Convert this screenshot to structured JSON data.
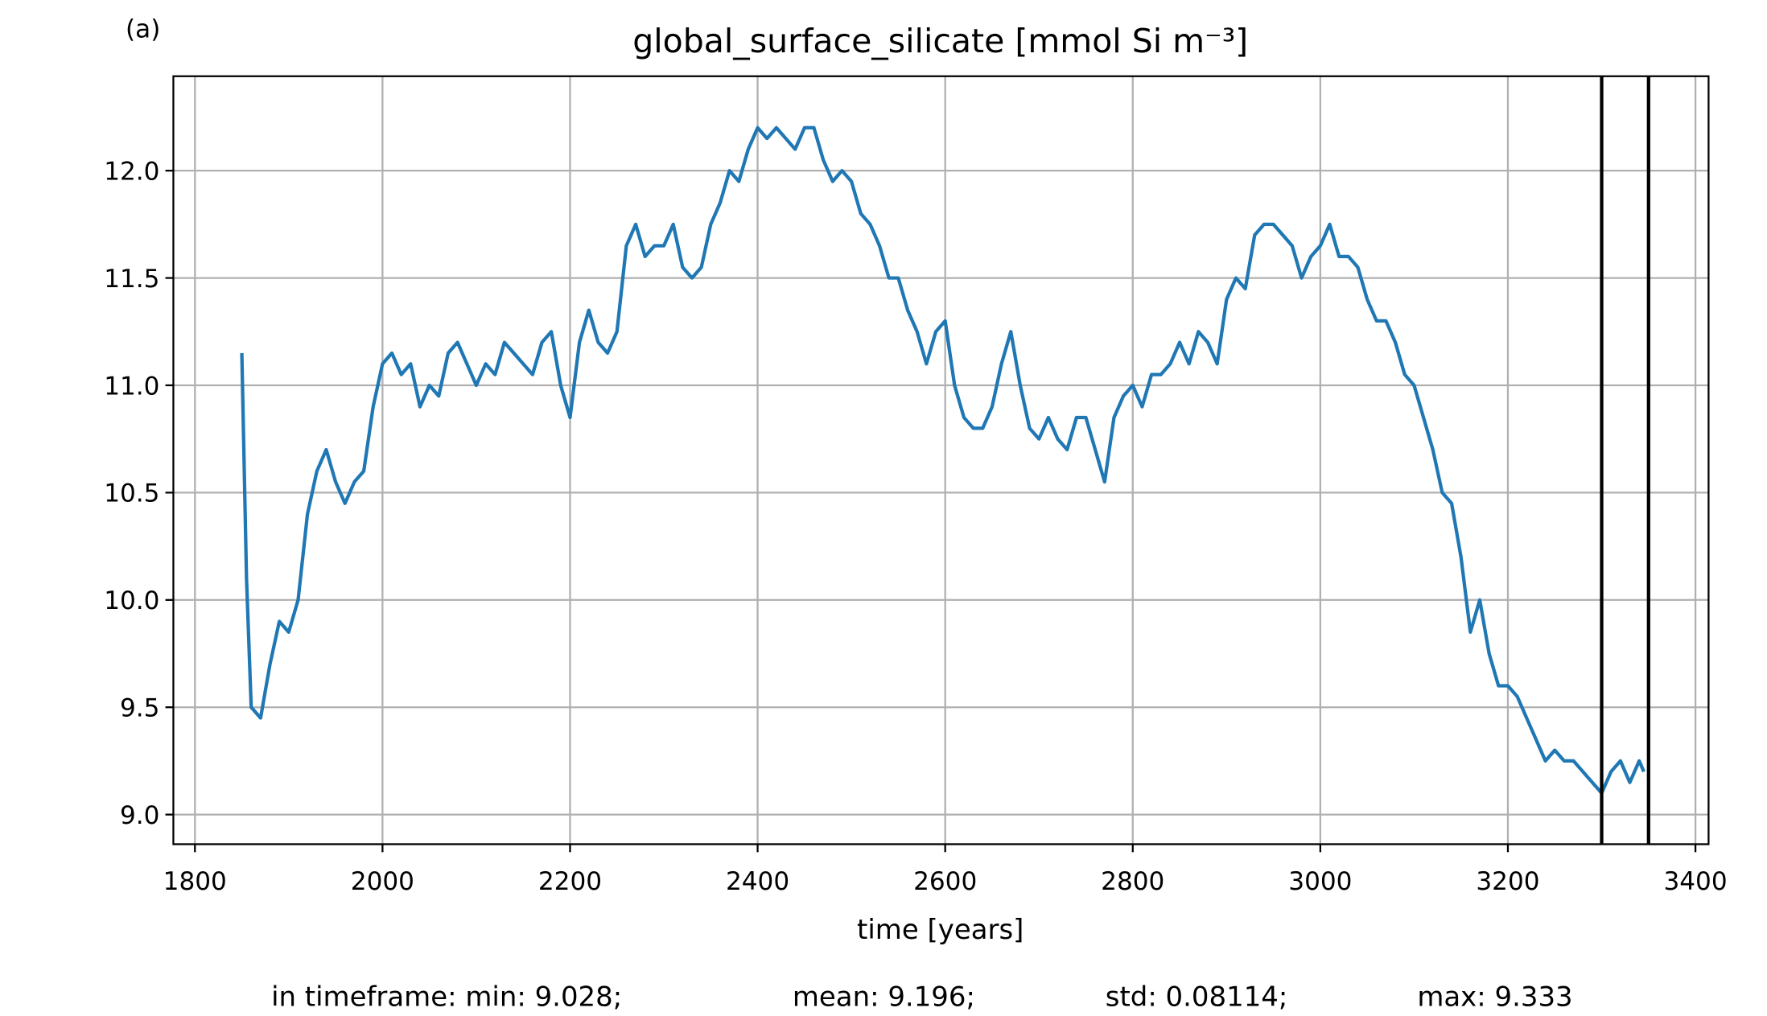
{
  "chart_data": {
    "type": "line",
    "panel_label": "(a)",
    "title": "global_surface_silicate [mmol Si m⁻³]",
    "x_label": "time [years]",
    "annotations": [
      "in timeframe: min: 9.028;",
      "mean: 9.196;",
      "std: 0.08114;",
      "max: 9.333"
    ],
    "x": [
      1850,
      1855,
      1860,
      1870,
      1880,
      1890,
      1900,
      1910,
      1920,
      1930,
      1940,
      1950,
      1960,
      1970,
      1980,
      1990,
      2000,
      2010,
      2020,
      2030,
      2040,
      2050,
      2060,
      2070,
      2080,
      2090,
      2100,
      2110,
      2120,
      2130,
      2140,
      2150,
      2160,
      2170,
      2180,
      2190,
      2200,
      2210,
      2220,
      2230,
      2240,
      2250,
      2260,
      2270,
      2280,
      2290,
      2300,
      2310,
      2320,
      2330,
      2340,
      2350,
      2360,
      2370,
      2380,
      2390,
      2400,
      2410,
      2420,
      2430,
      2440,
      2450,
      2460,
      2470,
      2480,
      2490,
      2500,
      2510,
      2520,
      2530,
      2540,
      2550,
      2560,
      2570,
      2580,
      2590,
      2600,
      2610,
      2620,
      2630,
      2640,
      2650,
      2660,
      2670,
      2680,
      2690,
      2700,
      2710,
      2720,
      2730,
      2740,
      2750,
      2760,
      2770,
      2780,
      2790,
      2800,
      2810,
      2820,
      2830,
      2840,
      2850,
      2860,
      2870,
      2880,
      2890,
      2900,
      2910,
      2920,
      2930,
      2940,
      2950,
      2960,
      2970,
      2980,
      2990,
      3000,
      3010,
      3020,
      3030,
      3040,
      3050,
      3060,
      3070,
      3080,
      3090,
      3100,
      3110,
      3120,
      3130,
      3140,
      3150,
      3160,
      3170,
      3180,
      3190,
      3200,
      3210,
      3220,
      3230,
      3240,
      3250,
      3260,
      3270,
      3280,
      3290,
      3300,
      3310,
      3320,
      3330,
      3340,
      3345
    ],
    "series": [
      {
        "name": "global_surface_silicate",
        "color": "#1f77b4",
        "values": [
          11.15,
          10.1,
          9.5,
          9.45,
          9.7,
          9.9,
          9.85,
          10.0,
          10.4,
          10.6,
          10.7,
          10.55,
          10.45,
          10.55,
          10.6,
          10.9,
          11.1,
          11.15,
          11.05,
          11.1,
          10.9,
          11.0,
          10.95,
          11.15,
          11.2,
          11.1,
          11.0,
          11.1,
          11.05,
          11.2,
          11.15,
          11.1,
          11.05,
          11.2,
          11.25,
          11.0,
          10.85,
          11.2,
          11.35,
          11.2,
          11.15,
          11.25,
          11.65,
          11.75,
          11.6,
          11.65,
          11.65,
          11.75,
          11.55,
          11.5,
          11.55,
          11.75,
          11.85,
          12.0,
          11.95,
          12.1,
          12.2,
          12.15,
          12.2,
          12.15,
          12.1,
          12.2,
          12.2,
          12.05,
          11.95,
          12.0,
          11.95,
          11.8,
          11.75,
          11.65,
          11.5,
          11.5,
          11.35,
          11.25,
          11.1,
          11.25,
          11.3,
          11.0,
          10.85,
          10.8,
          10.8,
          10.9,
          11.1,
          11.25,
          11.0,
          10.8,
          10.75,
          10.85,
          10.75,
          10.7,
          10.85,
          10.85,
          10.7,
          10.55,
          10.85,
          10.95,
          11.0,
          10.9,
          11.05,
          11.05,
          11.1,
          11.2,
          11.1,
          11.25,
          11.2,
          11.1,
          11.4,
          11.5,
          11.45,
          11.7,
          11.75,
          11.75,
          11.7,
          11.65,
          11.5,
          11.6,
          11.65,
          11.75,
          11.6,
          11.6,
          11.55,
          11.4,
          11.3,
          11.3,
          11.2,
          11.05,
          11.0,
          10.85,
          10.7,
          10.5,
          10.45,
          10.2,
          9.85,
          10.0,
          9.75,
          9.6,
          9.6,
          9.55,
          9.45,
          9.35,
          9.25,
          9.3,
          9.25,
          9.25,
          9.2,
          9.15,
          9.1,
          9.2,
          9.25,
          9.15,
          9.25,
          9.2
        ]
      }
    ],
    "vlines": [
      3300,
      3350
    ],
    "xlim": [
      1777,
      3414
    ],
    "ylim": [
      8.862,
      12.44
    ],
    "xticks": [
      1800,
      2000,
      2200,
      2400,
      2600,
      2800,
      3000,
      3200,
      3400
    ],
    "yticks": [
      {
        "value": 9,
        "label": "9.0"
      },
      9.5,
      {
        "value": 10,
        "label": "10.0"
      },
      10.5,
      {
        "value": 11,
        "label": "11.0"
      },
      11.5,
      {
        "value": 12,
        "label": "12.0"
      }
    ],
    "grid": true
  }
}
